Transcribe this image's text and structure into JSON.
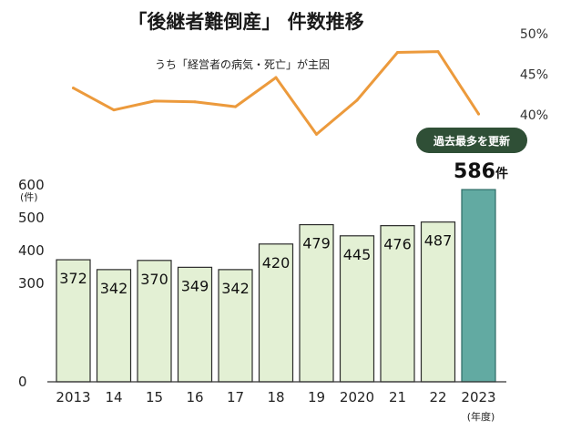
{
  "title": "「後継者難倒産」 件数推移",
  "chart_data": [
    {
      "type": "line",
      "name": "うち「経営者の病気・死亡」が主因",
      "x": [
        "2013",
        "14",
        "15",
        "16",
        "17",
        "18",
        "19",
        "2020",
        "21",
        "22",
        "2023"
      ],
      "values": [
        43.3,
        40.6,
        41.7,
        41.6,
        41.0,
        44.6,
        37.6,
        41.8,
        47.7,
        47.8,
        40.1
      ],
      "y_ticks": [
        "50%",
        "45%",
        "40%"
      ],
      "ylim": [
        40,
        50
      ],
      "color": "#ec9a3c"
    },
    {
      "type": "bar",
      "categories": [
        "2013",
        "14",
        "15",
        "16",
        "17",
        "18",
        "19",
        "2020",
        "21",
        "22",
        "2023"
      ],
      "values": [
        372,
        342,
        370,
        349,
        342,
        420,
        479,
        445,
        476,
        487,
        586
      ],
      "ylim": [
        0,
        600
      ],
      "y_ticks": [
        "0",
        "300",
        "400",
        "500",
        "600"
      ],
      "y_unit": "(件)",
      "x_unit": "(年度)",
      "bar_color": "#e3f0d4",
      "highlight_color": "#62aaa2",
      "highlight_label": "586件",
      "highlight_number": "586",
      "highlight_suffix": "件",
      "badge": "過去最多を更新",
      "badge_color": "#2f4f36"
    }
  ]
}
